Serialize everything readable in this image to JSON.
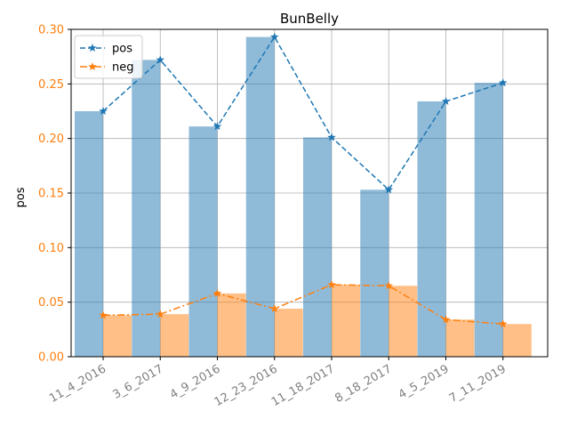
{
  "chart_data": {
    "type": "bar",
    "title": "BunBelly",
    "xlabel": "",
    "ylabel": "pos",
    "ylim": [
      0,
      0.3
    ],
    "yticks": [
      "0.00",
      "0.05",
      "0.10",
      "0.15",
      "0.20",
      "0.25",
      "0.30"
    ],
    "categories": [
      "11_4_2016",
      "3_6_2017",
      "4_9_2016",
      "12_23_2016",
      "11_18_2017",
      "8_18_2017",
      "4_5_2019",
      "7_11_2019"
    ],
    "grid": true,
    "legend_position": "top-left",
    "series": [
      {
        "name": "pos",
        "values": [
          0.225,
          0.272,
          0.211,
          0.293,
          0.201,
          0.153,
          0.234,
          0.251
        ],
        "bar_color": "#1f77b4",
        "line_color": "#1f77b4",
        "line_style": "dashed",
        "marker": "star"
      },
      {
        "name": "neg",
        "values": [
          0.038,
          0.039,
          0.058,
          0.044,
          0.066,
          0.065,
          0.034,
          0.03
        ],
        "bar_color": "#ff7f0e",
        "line_color": "#ff7f0e",
        "line_style": "dashdot",
        "marker": "star"
      }
    ],
    "tick_label_colors": {
      "y": "#ff7f0e",
      "x": "#808080"
    }
  }
}
